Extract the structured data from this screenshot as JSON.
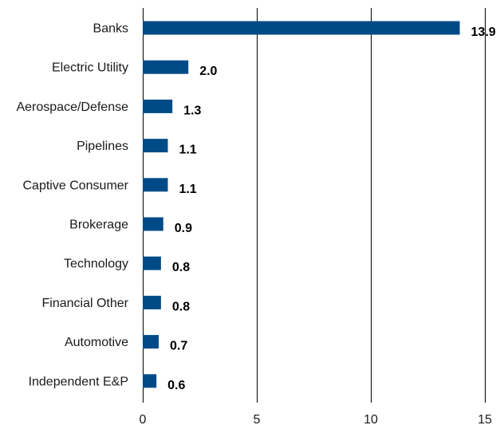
{
  "chart_data": {
    "type": "bar",
    "orientation": "horizontal",
    "categories": [
      "Banks",
      "Electric Utility",
      "Aerospace/Defense",
      "Pipelines",
      "Captive Consumer",
      "Brokerage",
      "Technology",
      "Financial Other",
      "Automotive",
      "Independent E&P"
    ],
    "values": [
      13.9,
      2.0,
      1.3,
      1.1,
      1.1,
      0.9,
      0.8,
      0.8,
      0.7,
      0.6
    ],
    "value_labels": [
      "13.9",
      "2.0",
      "1.3",
      "1.1",
      "1.1",
      "0.9",
      "0.8",
      "0.8",
      "0.7",
      "0.6"
    ],
    "xlim": [
      0,
      15
    ],
    "xticks": [
      0,
      5,
      10,
      15
    ],
    "xtick_labels": [
      "0",
      "5",
      "10",
      "15"
    ],
    "title": "",
    "xlabel": "",
    "ylabel": "",
    "grid": "vertical lines at ticks",
    "bar_color": "#004b87"
  }
}
